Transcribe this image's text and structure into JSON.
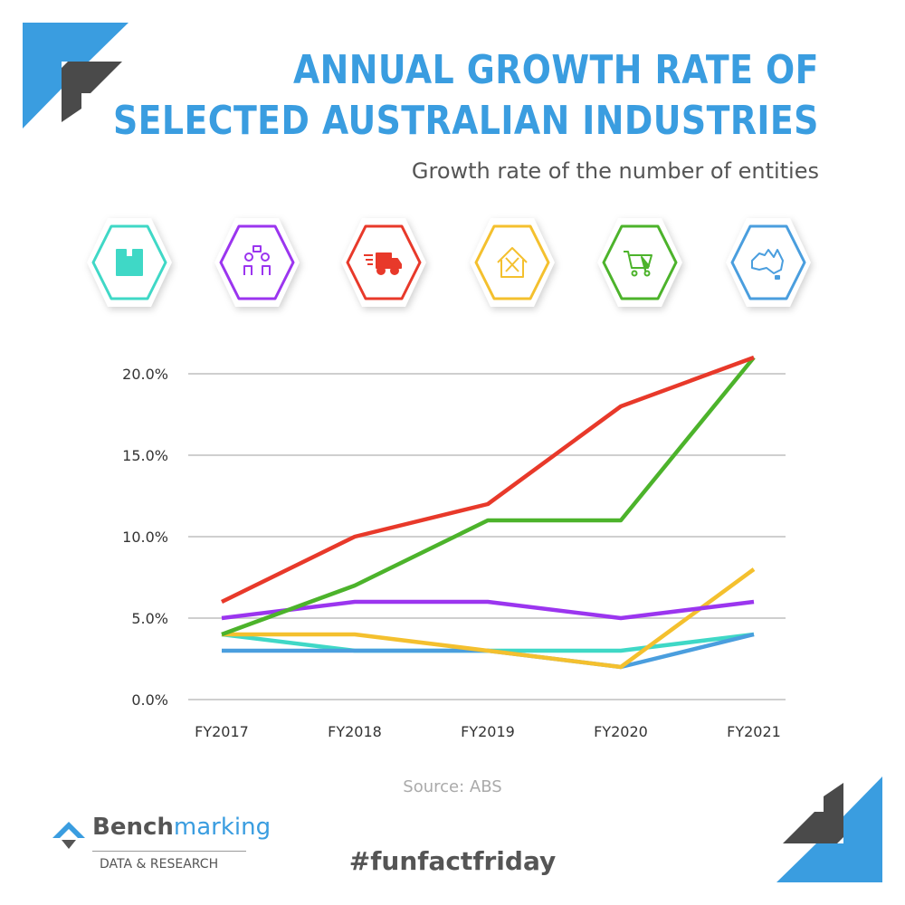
{
  "header": {
    "title_line1": "ANNUAL GROWTH RATE OF",
    "title_line2": "SELECTED AUSTRALIAN INDUSTRIES",
    "subtitle": "Growth rate of the number of entities"
  },
  "icons": [
    {
      "name": "building-icon",
      "color": "#3fd8c6"
    },
    {
      "name": "people-chat-icon",
      "color": "#9b35ef"
    },
    {
      "name": "delivery-truck-icon",
      "color": "#e8392a"
    },
    {
      "name": "house-tools-icon",
      "color": "#f4c02e"
    },
    {
      "name": "shopping-cart-icon",
      "color": "#4cb32b"
    },
    {
      "name": "australia-map-icon",
      "color": "#4a9ede"
    }
  ],
  "chart_data": {
    "type": "line",
    "title": "Growth rate of the number of entities",
    "xlabel": "",
    "ylabel": "",
    "categories": [
      "FY2017",
      "FY2018",
      "FY2019",
      "FY2020",
      "FY2021"
    ],
    "ylim": [
      0,
      20
    ],
    "yticks": [
      "0.0%",
      "5.0%",
      "10.0%",
      "15.0%",
      "20.0%"
    ],
    "ytick_values": [
      0,
      5,
      10,
      15,
      20
    ],
    "grid": true,
    "series": [
      {
        "name": "building-icon",
        "color": "#3fd8c6",
        "values": [
          4,
          3,
          3,
          3,
          4
        ]
      },
      {
        "name": "australia-map-icon",
        "color": "#4a9ede",
        "values": [
          3,
          3,
          3,
          2,
          4
        ]
      },
      {
        "name": "house-tools-icon",
        "color": "#f4c02e",
        "values": [
          4,
          4,
          3,
          2,
          8
        ]
      },
      {
        "name": "people-chat-icon",
        "color": "#9b35ef",
        "values": [
          5,
          6,
          6,
          5,
          6
        ]
      },
      {
        "name": "shopping-cart-icon",
        "color": "#4cb32b",
        "values": [
          4,
          7,
          11,
          11,
          21
        ]
      },
      {
        "name": "delivery-truck-icon",
        "color": "#e8392a",
        "values": [
          6,
          10,
          12,
          18,
          21
        ]
      }
    ]
  },
  "footer": {
    "source": "Source: ABS",
    "hashtag": "#funfactfriday",
    "logo_bold": "Bench",
    "logo_light": "marking",
    "logo_sub": "DATA & RESEARCH"
  }
}
